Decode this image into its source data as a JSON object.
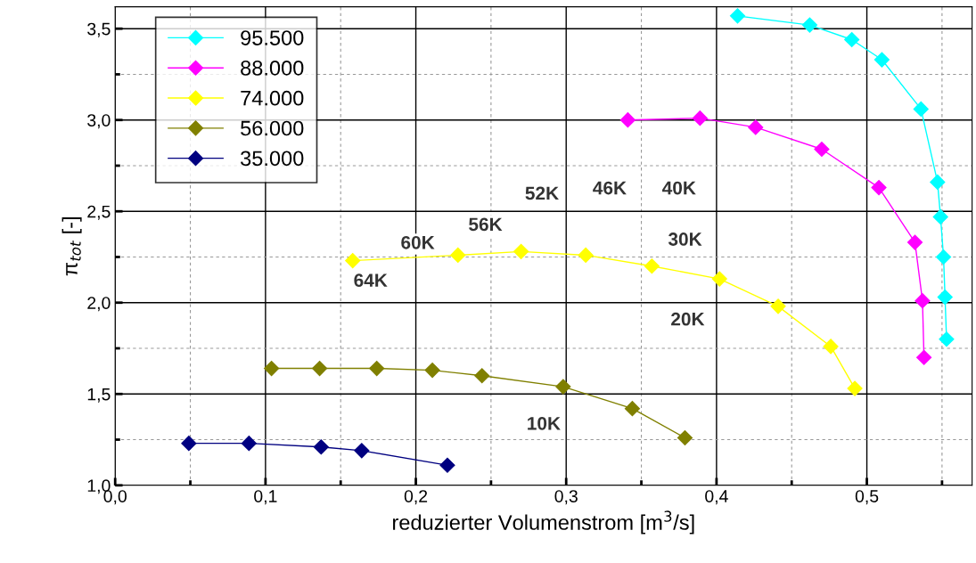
{
  "chart_data": {
    "type": "line",
    "xlabel": "reduzierter Volumenstrom [m$^{3}$/s]",
    "ylabel": "π$_{tot}$ [-]",
    "xlim": [
      0,
      0.57
    ],
    "ylim": [
      1.0,
      3.62
    ],
    "xticks": [
      {
        "value": 0,
        "label": "0,0"
      },
      {
        "value": 0.1,
        "label": "0,1"
      },
      {
        "value": 0.2,
        "label": "0,2"
      },
      {
        "value": 0.3,
        "label": "0,3"
      },
      {
        "value": 0.4,
        "label": "0,4"
      },
      {
        "value": 0.5,
        "label": "0,5"
      }
    ],
    "yticks": [
      {
        "value": 1.0,
        "label": "1,0"
      },
      {
        "value": 1.5,
        "label": "1,5"
      },
      {
        "value": 2.0,
        "label": "2,0"
      },
      {
        "value": 2.5,
        "label": "2,5"
      },
      {
        "value": 3.0,
        "label": "3,0"
      },
      {
        "value": 3.5,
        "label": "3,5"
      }
    ],
    "grid": true,
    "legend": "top left",
    "marker": "diamond",
    "line_style": "solid",
    "series": [
      {
        "name": "95.500",
        "color": "#00ffff",
        "x": [
          0.414,
          0.462,
          0.49,
          0.51,
          0.536,
          0.547,
          0.549,
          0.551,
          0.552,
          0.553
        ],
        "values": [
          3.57,
          3.52,
          3.44,
          3.33,
          3.06,
          2.66,
          2.47,
          2.25,
          2.03,
          1.8
        ]
      },
      {
        "name": "88.000",
        "color": "#ff00ff",
        "x": [
          0.341,
          0.389,
          0.426,
          0.47,
          0.508,
          0.532,
          0.537,
          0.538
        ],
        "values": [
          3.0,
          3.01,
          2.96,
          2.84,
          2.63,
          2.33,
          2.01,
          1.7
        ]
      },
      {
        "name": "74.000",
        "color": "#ffff00",
        "x": [
          0.158,
          0.228,
          0.27,
          0.313,
          0.357,
          0.402,
          0.441,
          0.476,
          0.492
        ],
        "values": [
          2.23,
          2.26,
          2.28,
          2.26,
          2.2,
          2.13,
          1.98,
          1.76,
          1.53
        ]
      },
      {
        "name": "56.000",
        "color": "#808000",
        "x": [
          0.104,
          0.136,
          0.174,
          0.211,
          0.244,
          0.298,
          0.344,
          0.379
        ],
        "values": [
          1.64,
          1.64,
          1.64,
          1.63,
          1.6,
          1.54,
          1.42,
          1.26
        ]
      },
      {
        "name": "35.000",
        "color": "#000080",
        "x": [
          0.049,
          0.089,
          0.137,
          0.164,
          0.221
        ],
        "values": [
          1.23,
          1.23,
          1.21,
          1.19,
          1.11
        ]
      }
    ],
    "annotations": [
      "64K",
      "60K",
      "56K",
      "52K",
      "46K",
      "40K",
      "30K",
      "20K",
      "10K"
    ]
  }
}
